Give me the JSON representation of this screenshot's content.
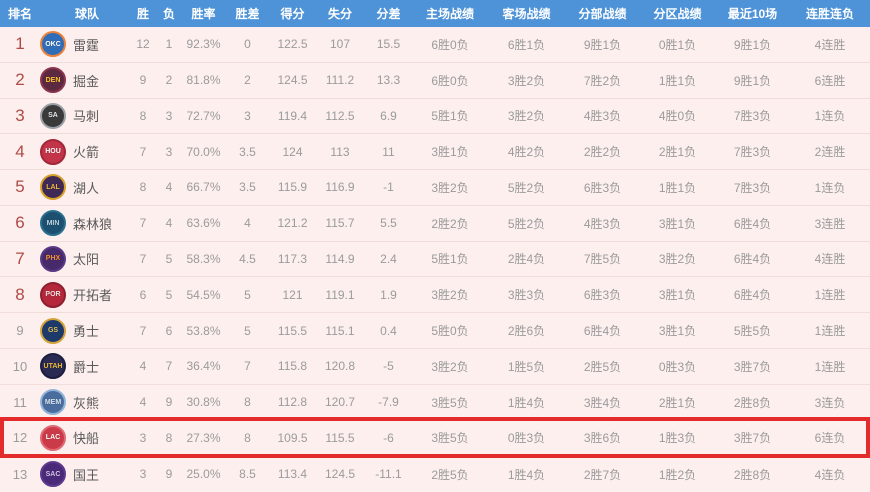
{
  "colors": {
    "header_bg": "#4e93d8",
    "header_text": "#ffffff",
    "row_bg": "#fcefed",
    "divider": "#f0dcd9",
    "rank_top8": "#b04a47",
    "rank_rest": "#9b9b9b",
    "stat_text": "#9b9b9b",
    "team_text": "#5a5a5a",
    "highlight_border": "#e32b2b"
  },
  "table": {
    "columns": [
      {
        "key": "rank",
        "label": "排名"
      },
      {
        "key": "team",
        "label": "球队"
      },
      {
        "key": "wins",
        "label": "胜"
      },
      {
        "key": "losses",
        "label": "负"
      },
      {
        "key": "pct",
        "label": "胜率"
      },
      {
        "key": "gb",
        "label": "胜差"
      },
      {
        "key": "pf",
        "label": "得分"
      },
      {
        "key": "pa",
        "label": "失分"
      },
      {
        "key": "diff",
        "label": "分差"
      },
      {
        "key": "home",
        "label": "主场战绩"
      },
      {
        "key": "away",
        "label": "客场战绩"
      },
      {
        "key": "division",
        "label": "分部战绩"
      },
      {
        "key": "conference",
        "label": "分区战绩"
      },
      {
        "key": "last10",
        "label": "最近10场"
      },
      {
        "key": "streak",
        "label": "连胜连负"
      }
    ],
    "highlighted_team": "快船",
    "rows": [
      {
        "rank": "1",
        "team": "雷霆",
        "abbr": "OKC",
        "logo_bg": "#2f6db8",
        "logo_ring": "#e8823c",
        "logo_text": "#ffffff",
        "wins": "12",
        "losses": "1",
        "pct": "92.3%",
        "gb": "0",
        "pf": "122.5",
        "pa": "107",
        "diff": "15.5",
        "home": "6胜0负",
        "away": "6胜1负",
        "division": "9胜1负",
        "conference": "0胜1负",
        "last10": "9胜1负",
        "streak": "4连胜",
        "top8": true,
        "highlighted": false
      },
      {
        "rank": "2",
        "team": "掘金",
        "abbr": "DEN",
        "logo_bg": "#5c2940",
        "logo_ring": "#8a3550",
        "logo_text": "#fdc52f",
        "wins": "9",
        "losses": "2",
        "pct": "81.8%",
        "gb": "2",
        "pf": "124.5",
        "pa": "111.2",
        "diff": "13.3",
        "home": "6胜0负",
        "away": "3胜2负",
        "division": "7胜2负",
        "conference": "1胜1负",
        "last10": "9胜1负",
        "streak": "6连胜",
        "top8": true,
        "highlighted": false
      },
      {
        "rank": "3",
        "team": "马刺",
        "abbr": "SA",
        "logo_bg": "#3a3a3a",
        "logo_ring": "#9aa0a6",
        "logo_text": "#e5e8ec",
        "wins": "8",
        "losses": "3",
        "pct": "72.7%",
        "gb": "3",
        "pf": "119.4",
        "pa": "112.5",
        "diff": "6.9",
        "home": "5胜1负",
        "away": "3胜2负",
        "division": "4胜3负",
        "conference": "4胜0负",
        "last10": "7胜3负",
        "streak": "1连负",
        "top8": true,
        "highlighted": false
      },
      {
        "rank": "4",
        "team": "火箭",
        "abbr": "HOU",
        "logo_bg": "#c23549",
        "logo_ring": "#a32638",
        "logo_text": "#ffffff",
        "wins": "7",
        "losses": "3",
        "pct": "70.0%",
        "gb": "3.5",
        "pf": "124",
        "pa": "113",
        "diff": "11",
        "home": "3胜1负",
        "away": "4胜2负",
        "division": "2胜2负",
        "conference": "2胜1负",
        "last10": "7胜3负",
        "streak": "2连胜",
        "top8": true,
        "highlighted": false
      },
      {
        "rank": "5",
        "team": "湖人",
        "abbr": "LAL",
        "logo_bg": "#3f2a56",
        "logo_ring": "#d8a02c",
        "logo_text": "#f0b73a",
        "wins": "8",
        "losses": "4",
        "pct": "66.7%",
        "gb": "3.5",
        "pf": "115.9",
        "pa": "116.9",
        "diff": "-1",
        "home": "3胜2负",
        "away": "5胜2负",
        "division": "6胜3负",
        "conference": "1胜1负",
        "last10": "7胜3负",
        "streak": "1连负",
        "top8": true,
        "highlighted": false
      },
      {
        "rank": "6",
        "team": "森林狼",
        "abbr": "MIN",
        "logo_bg": "#1d4f70",
        "logo_ring": "#2a6e8e",
        "logo_text": "#bcd4e2",
        "wins": "7",
        "losses": "4",
        "pct": "63.6%",
        "gb": "4",
        "pf": "121.2",
        "pa": "115.7",
        "diff": "5.5",
        "home": "2胜2负",
        "away": "5胜2负",
        "division": "4胜3负",
        "conference": "3胜1负",
        "last10": "6胜4负",
        "streak": "3连胜",
        "top8": true,
        "highlighted": false
      },
      {
        "rank": "7",
        "team": "太阳",
        "abbr": "PHX",
        "logo_bg": "#472a6b",
        "logo_ring": "#5b3a85",
        "logo_text": "#f59033",
        "wins": "7",
        "losses": "5",
        "pct": "58.3%",
        "gb": "4.5",
        "pf": "117.3",
        "pa": "114.9",
        "diff": "2.4",
        "home": "5胜1负",
        "away": "2胜4负",
        "division": "7胜5负",
        "conference": "3胜2负",
        "last10": "6胜4负",
        "streak": "4连胜",
        "top8": true,
        "highlighted": false
      },
      {
        "rank": "8",
        "team": "开拓者",
        "abbr": "POR",
        "logo_bg": "#b5283c",
        "logo_ring": "#8e1f2f",
        "logo_text": "#f3dedd",
        "wins": "6",
        "losses": "5",
        "pct": "54.5%",
        "gb": "5",
        "pf": "121",
        "pa": "119.1",
        "diff": "1.9",
        "home": "3胜2负",
        "away": "3胜3负",
        "division": "6胜3负",
        "conference": "3胜1负",
        "last10": "6胜4负",
        "streak": "1连胜",
        "top8": true,
        "highlighted": false
      },
      {
        "rank": "9",
        "team": "勇士",
        "abbr": "GS",
        "logo_bg": "#1d3a6b",
        "logo_ring": "#d4a43c",
        "logo_text": "#e8c455",
        "wins": "7",
        "losses": "6",
        "pct": "53.8%",
        "gb": "5",
        "pf": "115.5",
        "pa": "115.1",
        "diff": "0.4",
        "home": "5胜0负",
        "away": "2胜6负",
        "division": "6胜4负",
        "conference": "3胜1负",
        "last10": "5胜5负",
        "streak": "1连胜",
        "top8": false,
        "highlighted": false
      },
      {
        "rank": "10",
        "team": "爵士",
        "abbr": "UTAH",
        "logo_bg": "#2a2a52",
        "logo_ring": "#1d1d40",
        "logo_text": "#e8b93c",
        "wins": "4",
        "losses": "7",
        "pct": "36.4%",
        "gb": "7",
        "pf": "115.8",
        "pa": "120.8",
        "diff": "-5",
        "home": "3胜2负",
        "away": "1胜5负",
        "division": "2胜5负",
        "conference": "0胜3负",
        "last10": "3胜7负",
        "streak": "1连胜",
        "top8": false,
        "highlighted": false
      },
      {
        "rank": "11",
        "team": "灰熊",
        "abbr": "MEM",
        "logo_bg": "#4a6d9e",
        "logo_ring": "#8fb3d9",
        "logo_text": "#d7e4f2",
        "wins": "4",
        "losses": "9",
        "pct": "30.8%",
        "gb": "8",
        "pf": "112.8",
        "pa": "120.7",
        "diff": "-7.9",
        "home": "3胜5负",
        "away": "1胜4负",
        "division": "3胜4负",
        "conference": "2胜1负",
        "last10": "2胜8负",
        "streak": "3连负",
        "top8": false,
        "highlighted": false
      },
      {
        "rank": "12",
        "team": "快船",
        "abbr": "LAC",
        "logo_bg": "#cb3a48",
        "logo_ring": "#e06a74",
        "logo_text": "#ffffff",
        "wins": "3",
        "losses": "8",
        "pct": "27.3%",
        "gb": "8",
        "pf": "109.5",
        "pa": "115.5",
        "diff": "-6",
        "home": "3胜5负",
        "away": "0胜3负",
        "division": "3胜6负",
        "conference": "1胜3负",
        "last10": "3胜7负",
        "streak": "6连负",
        "top8": false,
        "highlighted": true
      },
      {
        "rank": "13",
        "team": "国王",
        "abbr": "SAC",
        "logo_bg": "#4a2a78",
        "logo_ring": "#5e3a8e",
        "logo_text": "#d4c6ec",
        "wins": "3",
        "losses": "9",
        "pct": "25.0%",
        "gb": "8.5",
        "pf": "113.4",
        "pa": "124.5",
        "diff": "-11.1",
        "home": "2胜5负",
        "away": "1胜4负",
        "division": "2胜7负",
        "conference": "1胜2负",
        "last10": "2胜8负",
        "streak": "4连负",
        "top8": false,
        "highlighted": false
      }
    ]
  }
}
